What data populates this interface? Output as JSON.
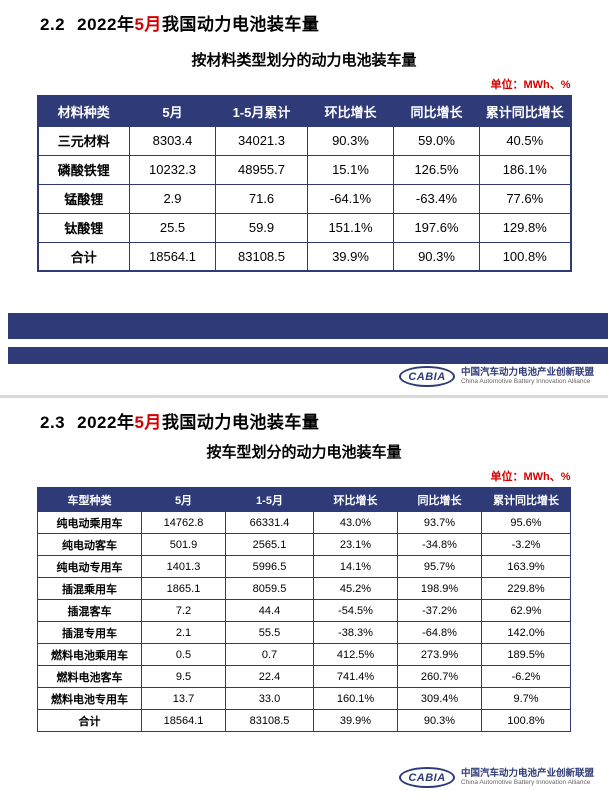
{
  "colors": {
    "navy": "#2f3b78",
    "red": "#d40000",
    "header_text": "#ffffff"
  },
  "logo": {
    "text": "CABIA",
    "org_cn": "中国汽车动力电池产业创新联盟",
    "org_en": "China Automotive Battery Innovation Alliance"
  },
  "slide1": {
    "number": "2.2",
    "title_prefix": "2022年",
    "title_month": "5月",
    "title_suffix": "我国动力电池装车量",
    "subtitle": "按材料类型划分的动力电池装车量",
    "unit": "单位：MWh、%",
    "table": {
      "headers": [
        "材料种类",
        "5月",
        "1-5月累计",
        "环比增长",
        "同比增长",
        "累计同比增长"
      ],
      "rows": [
        [
          "三元材料",
          "8303.4",
          "34021.3",
          "90.3%",
          "59.0%",
          "40.5%"
        ],
        [
          "磷酸铁锂",
          "10232.3",
          "48955.7",
          "15.1%",
          "126.5%",
          "186.1%"
        ],
        [
          "锰酸锂",
          "2.9",
          "71.6",
          "-64.1%",
          "-63.4%",
          "77.6%"
        ],
        [
          "钛酸锂",
          "25.5",
          "59.9",
          "151.1%",
          "197.6%",
          "129.8%"
        ],
        [
          "合计",
          "18564.1",
          "83108.5",
          "39.9%",
          "90.3%",
          "100.8%"
        ]
      ]
    }
  },
  "slide2": {
    "number": "2.3",
    "title_prefix": "2022年",
    "title_month": "5月",
    "title_suffix": "我国动力电池装车量",
    "subtitle": "按车型划分的动力电池装车量",
    "unit": "单位：MWh、%",
    "table": {
      "headers": [
        "车型种类",
        "5月",
        "1-5月",
        "环比增长",
        "同比增长",
        "累计同比增长"
      ],
      "rows": [
        [
          "纯电动乘用车",
          "14762.8",
          "66331.4",
          "43.0%",
          "93.7%",
          "95.6%"
        ],
        [
          "纯电动客车",
          "501.9",
          "2565.1",
          "23.1%",
          "-34.8%",
          "-3.2%"
        ],
        [
          "纯电动专用车",
          "1401.3",
          "5996.5",
          "14.1%",
          "95.7%",
          "163.9%"
        ],
        [
          "插混乘用车",
          "1865.1",
          "8059.5",
          "45.2%",
          "198.9%",
          "229.8%"
        ],
        [
          "插混客车",
          "7.2",
          "44.4",
          "-54.5%",
          "-37.2%",
          "62.9%"
        ],
        [
          "插混专用车",
          "2.1",
          "55.5",
          "-38.3%",
          "-64.8%",
          "142.0%"
        ],
        [
          "燃料电池乘用车",
          "0.5",
          "0.7",
          "412.5%",
          "273.9%",
          "189.5%"
        ],
        [
          "燃料电池客车",
          "9.5",
          "22.4",
          "741.4%",
          "260.7%",
          "-6.2%"
        ],
        [
          "燃料电池专用车",
          "13.7",
          "33.0",
          "160.1%",
          "309.4%",
          "9.7%"
        ],
        [
          "合计",
          "18564.1",
          "83108.5",
          "39.9%",
          "90.3%",
          "100.8%"
        ]
      ]
    }
  }
}
